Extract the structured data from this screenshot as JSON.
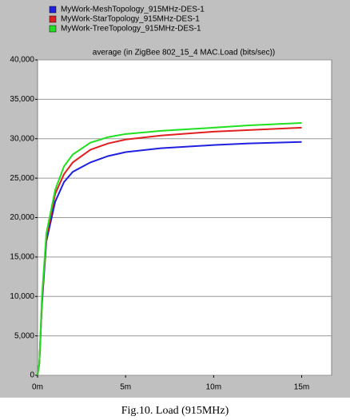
{
  "chart_data": {
    "type": "line",
    "title": "average (in ZigBee 802_15_4 MAC.Load (bits/sec))",
    "x": [
      0,
      0.1,
      0.25,
      0.5,
      1,
      1.5,
      2,
      3,
      4,
      5,
      7,
      10,
      12,
      15
    ],
    "series": [
      {
        "name": "MyWork-MeshTopology_915MHz-DES-1",
        "color": "#2020e0",
        "values": [
          0,
          1500,
          9000,
          17000,
          22000,
          24500,
          25800,
          27000,
          27800,
          28300,
          28800,
          29200,
          29400,
          29600
        ]
      },
      {
        "name": "MyWork-StarTopology_915MHz-DES-1",
        "color": "#e02020",
        "values": [
          0,
          1500,
          9500,
          17500,
          23000,
          25500,
          27000,
          28600,
          29400,
          29900,
          30400,
          30900,
          31100,
          31400
        ]
      },
      {
        "name": "MyWork-TreeTopology_915MHz-DES-1",
        "color": "#20e020",
        "values": [
          0,
          1500,
          10000,
          18000,
          23500,
          26500,
          28000,
          29500,
          30200,
          30600,
          31000,
          31400,
          31700,
          32000
        ]
      }
    ],
    "xlim": [
      0,
      16.7
    ],
    "ylim": [
      0,
      40000
    ],
    "xticks": [
      {
        "value": 0,
        "label": "0m"
      },
      {
        "value": 5,
        "label": "5m"
      },
      {
        "value": 10,
        "label": "10m"
      },
      {
        "value": 15,
        "label": "15m"
      }
    ],
    "yticks": [
      0,
      {
        "value": 5000,
        "label": "5,000"
      },
      {
        "value": 10000,
        "label": "10,000"
      },
      {
        "value": 15000,
        "label": "15,000"
      },
      {
        "value": 20000,
        "label": "20,000"
      },
      {
        "value": 25000,
        "label": "25,000"
      },
      {
        "value": 30000,
        "label": "30,000"
      },
      {
        "value": 35000,
        "label": "35,000"
      },
      {
        "value": 40000,
        "label": "40,000"
      }
    ],
    "grid": true
  },
  "caption": "Fig.10. Load (915MHz)"
}
